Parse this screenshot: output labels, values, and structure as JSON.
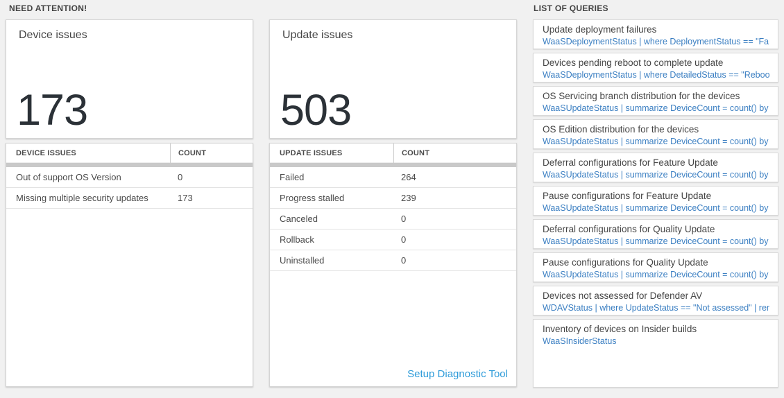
{
  "sections": {
    "need_attention": {
      "label": "NEED ATTENTION!"
    },
    "list_of_queries": {
      "label": "LIST OF QUERIES"
    }
  },
  "cards": [
    {
      "title": "Device issues",
      "count": "173",
      "table": {
        "headers": [
          "DEVICE ISSUES",
          "COUNT"
        ],
        "rows": [
          [
            "Out of support OS Version",
            "0"
          ],
          [
            "Missing multiple security updates",
            "173"
          ]
        ]
      }
    },
    {
      "title": "Update issues",
      "count": "503",
      "table": {
        "headers": [
          "UPDATE ISSUES",
          "COUNT"
        ],
        "rows": [
          [
            "Failed",
            "264"
          ],
          [
            "Progress stalled",
            "239"
          ],
          [
            "Canceled",
            "0"
          ],
          [
            "Rollback",
            "0"
          ],
          [
            "Uninstalled",
            "0"
          ]
        ]
      },
      "footer_link": "Setup Diagnostic Tool"
    }
  ],
  "queries": [
    {
      "title": "Update deployment failures",
      "query": "WaaSDeploymentStatus | where DeploymentStatus == \"Failed\" |..."
    },
    {
      "title": "Devices pending reboot to complete update",
      "query": "WaaSDeploymentStatus | where DetailedStatus == \"Reboot pend..."
    },
    {
      "title": "OS Servicing branch distribution for the devices",
      "query": "WaaSUpdateStatus | summarize DeviceCount = count() by OSSer..."
    },
    {
      "title": "OS Edition distribution for the devices",
      "query": "WaaSUpdateStatus | summarize DeviceCount = count() by OSEdit..."
    },
    {
      "title": "Deferral configurations for Feature Update",
      "query": "WaaSUpdateStatus | summarize DeviceCount = count() by Featur..."
    },
    {
      "title": "Pause configurations for Feature Update",
      "query": "WaaSUpdateStatus | summarize DeviceCount = count() by Featur..."
    },
    {
      "title": "Deferral configurations for Quality Update",
      "query": "WaaSUpdateStatus | summarize DeviceCount = count() by Qualit..."
    },
    {
      "title": "Pause configurations for Quality Update",
      "query": "WaaSUpdateStatus | summarize DeviceCount = count() by Qualit..."
    },
    {
      "title": "Devices not assessed for Defender AV",
      "query": "WDAVStatus | where UpdateStatus == \"Not assessed\" | render ta..."
    },
    {
      "title": "Inventory of devices on Insider builds",
      "query": "WaaSInsiderStatus"
    }
  ],
  "colors": {
    "background": "#f1f1f1",
    "big_number": "#2b3137",
    "query_link_blue": "#3b7fc2",
    "setup_link_blue": "#2d9bd9",
    "scrollbar_gray": "#c9c9c9"
  }
}
